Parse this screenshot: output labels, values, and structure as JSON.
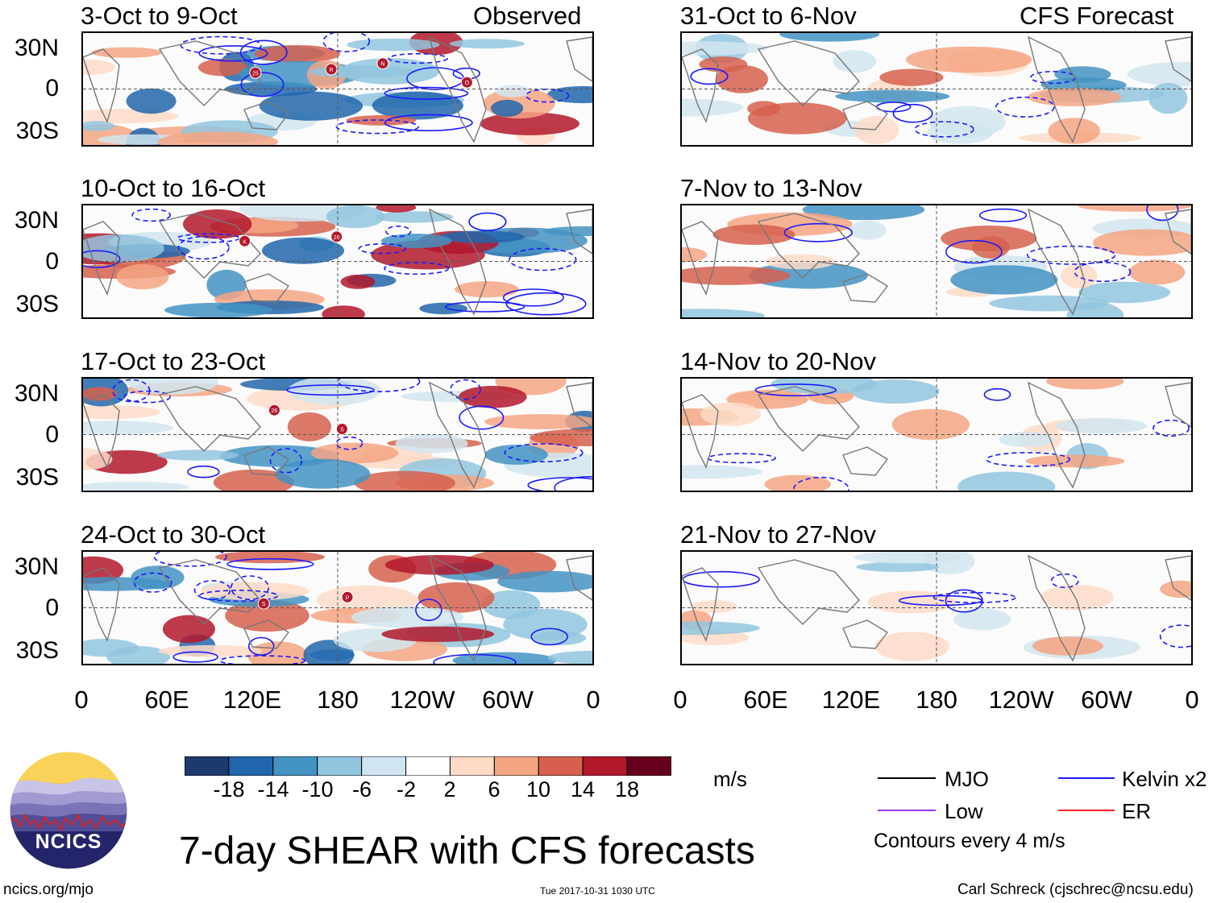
{
  "title": "7-day SHEAR with CFS forecasts",
  "units": "m/s",
  "observed_label": "Observed",
  "forecast_label": "CFS Forecast",
  "observed_panels": [
    {
      "title": "3-Oct to 9-Oct",
      "storms": [
        "25",
        "R",
        "N",
        "O"
      ]
    },
    {
      "title": "10-Oct to 16-Oct",
      "storms": [
        "K",
        "26"
      ]
    },
    {
      "title": "17-Oct to 23-Oct",
      "storms": [
        "26",
        "S"
      ]
    },
    {
      "title": "24-Oct to 30-Oct",
      "storms": [
        "S",
        "P"
      ]
    }
  ],
  "forecast_panels": [
    {
      "title": "31-Oct to 6-Nov"
    },
    {
      "title": "7-Nov to 13-Nov"
    },
    {
      "title": "14-Nov to 20-Nov"
    },
    {
      "title": "21-Nov to 27-Nov"
    }
  ],
  "y_ticks": [
    "30N",
    "0",
    "30S"
  ],
  "x_ticks": [
    "0",
    "60E",
    "120E",
    "180",
    "120W",
    "60W",
    "0"
  ],
  "colorbar": {
    "labels": [
      "-18",
      "-14",
      "-10",
      "-6",
      "-2",
      "2",
      "6",
      "10",
      "14",
      "18"
    ],
    "colors": [
      "#1c3a6e",
      "#2166ac",
      "#4393c3",
      "#92c5de",
      "#d1e5f0",
      "#ffffff",
      "#fddbc7",
      "#f4a582",
      "#d6604d",
      "#b2182b",
      "#67001f"
    ]
  },
  "legend": {
    "items": [
      {
        "label": "MJO",
        "color": "#000000"
      },
      {
        "label": "Kelvin x2",
        "color": "#1a1aff"
      },
      {
        "label": "Low",
        "color": "#9933ff"
      },
      {
        "label": "ER",
        "color": "#ff2020"
      }
    ],
    "contours_note": "Contours every 4 m/s"
  },
  "logo_text": "NCICS",
  "footer": {
    "left": "ncics.org/mjo",
    "center": "Tue 2017-10-31 1030 UTC",
    "right": "Carl Schreck (cjschrec@ncsu.edu)"
  }
}
